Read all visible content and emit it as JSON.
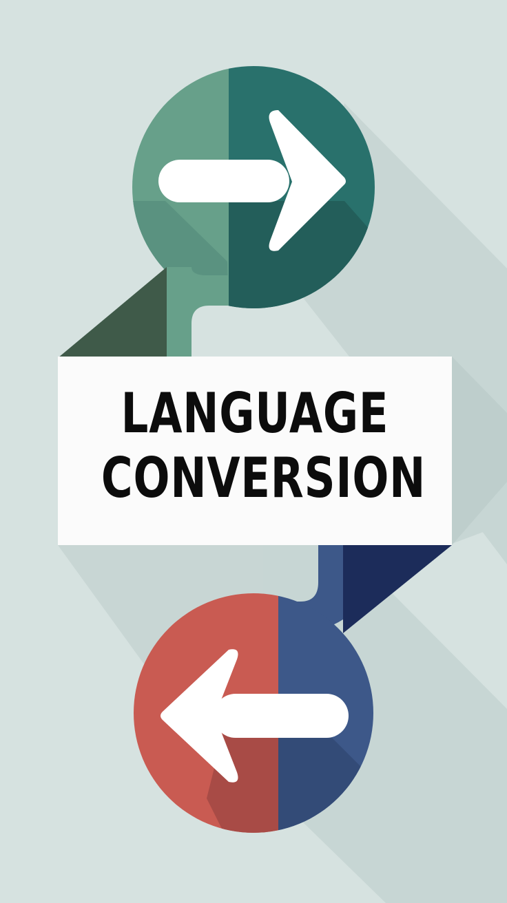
{
  "title": {
    "line1": "LANGUAGE",
    "line2": "CONVERSION"
  },
  "icons": {
    "top": "right-arrow-icon",
    "bottom": "left-arrow-icon"
  },
  "colors": {
    "background": "#d6e2e0",
    "top_circle_light": "#67a08a",
    "top_circle_dark": "#29716c",
    "bottom_circle_red": "#c95b52",
    "bottom_circle_blue": "#3d5889",
    "navy_wedge": "#1c2c5a",
    "dark_green_wedge": "#3f5a49",
    "card": "#fbfbfb",
    "text": "#0c0c0c"
  }
}
